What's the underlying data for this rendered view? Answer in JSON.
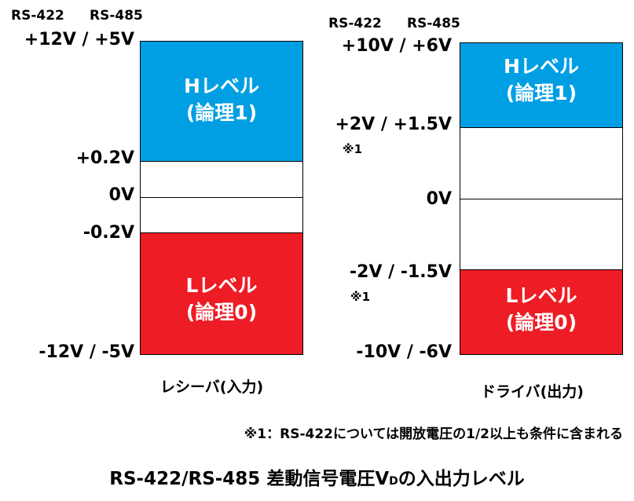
{
  "colors": {
    "high": "#009fe3",
    "low": "#ee1c25",
    "mid": "#ffffff",
    "border": "#000000"
  },
  "receiver": {
    "header_rs422": "RS-422",
    "header_rs485": "RS-485",
    "levels": {
      "top": "+12V / +5V",
      "high_threshold": "+0.2V",
      "zero": "0V",
      "low_threshold": "-0.2V",
      "bottom": "-12V / -5V"
    },
    "high_band": {
      "line1": "Hレベル",
      "line2": "(論理1)"
    },
    "low_band": {
      "line1": "Lレベル",
      "line2": "(論理0)"
    },
    "caption": "レシーバ(入力)"
  },
  "driver": {
    "header_rs422": "RS-422",
    "header_rs485": "RS-485",
    "levels": {
      "top": "+10V / +6V",
      "high_threshold": "+2V / +1.5V",
      "high_note": "※1",
      "zero": "0V",
      "low_threshold": "-2V / -1.5V",
      "low_note": "※1",
      "bottom": "-10V / -6V"
    },
    "high_band": {
      "line1": "Hレベル",
      "line2": "(論理1)"
    },
    "low_band": {
      "line1": "Lレベル",
      "line2": "(論理0)"
    },
    "caption": "ドライバ(出力)"
  },
  "footnote": "※1：RS-422については開放電圧の1/2以上も条件に含まれる",
  "title": {
    "prefix": "RS-422/RS-485 差動信号電圧V",
    "subscript": "D",
    "suffix": "の入出力レベル"
  }
}
